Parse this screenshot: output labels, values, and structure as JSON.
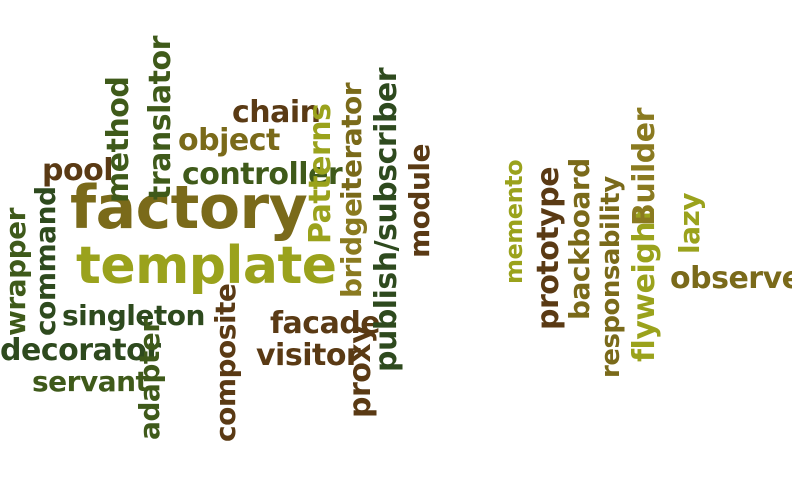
{
  "words": {
    "factory": "factory",
    "template": "template",
    "chain": "chain",
    "object": "object",
    "controller": "controller",
    "pool": "pool",
    "method": "method",
    "translator": "translator",
    "patterns": "Patterns",
    "bridge": "bridge",
    "iterator": "iterator",
    "publish_subscriber": "publish/subscriber",
    "module": "module",
    "command": "command",
    "wrapper": "wrapper",
    "singleton": "singleton",
    "decorator": "decorator",
    "servant": "servant",
    "adapter": "adapter",
    "composite": "composite",
    "facade": "facade",
    "visitor": "visitor",
    "proxy": "proxy",
    "memento": "memento",
    "prototype": "prototype",
    "backboard": "backboard",
    "responsability": "responsability",
    "flyweight": "flyweight",
    "builder": "Builder",
    "lazy": "lazy",
    "observer": "observer"
  },
  "colors": {
    "dark_green": "#2e4a1e",
    "dark_brown": "#5a3a14",
    "olive": "#7a6a1a",
    "yellow_green": "#9aa21c",
    "khaki": "#8a7a20",
    "green": "#3f5a1a"
  }
}
